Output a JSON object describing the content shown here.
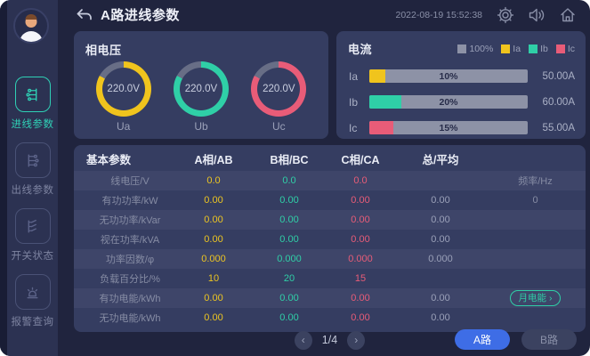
{
  "topbar": {
    "title": "A路进线参数",
    "timestamp": "2022-08-19 15:52:38",
    "icons": [
      "back-icon",
      "gear-icon",
      "speaker-icon",
      "home-icon"
    ]
  },
  "sidebar": {
    "items": [
      {
        "label": "进线参数",
        "icon": "incoming-line-icon",
        "active": true
      },
      {
        "label": "出线参数",
        "icon": "outgoing-line-icon",
        "active": false
      },
      {
        "label": "开关状态",
        "icon": "switch-status-icon",
        "active": false
      },
      {
        "label": "报警查询",
        "icon": "alarm-icon",
        "active": false
      }
    ]
  },
  "voltage_panel": {
    "title": "相电压",
    "gauges": [
      {
        "label": "Ua",
        "value": "220.0V",
        "color": "#f0c41d",
        "fill_percent": 83
      },
      {
        "label": "Ub",
        "value": "220.0V",
        "color": "#2fcfa7",
        "fill_percent": 83
      },
      {
        "label": "Uc",
        "value": "220.0V",
        "color": "#e85c78",
        "fill_percent": 83
      }
    ]
  },
  "current_panel": {
    "title": "电流",
    "legend": [
      {
        "label": "100%",
        "color": "#8d92a6"
      },
      {
        "label": "Ia",
        "color": "#f0c41d"
      },
      {
        "label": "Ib",
        "color": "#2fcfa7"
      },
      {
        "label": "Ic",
        "color": "#e85c78"
      }
    ],
    "bars": [
      {
        "label": "Ia",
        "percent": 10,
        "percent_label": "10%",
        "value": "50.00A",
        "color": "#f0c41d"
      },
      {
        "label": "Ib",
        "percent": 20,
        "percent_label": "20%",
        "value": "60.00A",
        "color": "#2fcfa7"
      },
      {
        "label": "Ic",
        "percent": 15,
        "percent_label": "15%",
        "value": "55.00A",
        "color": "#e85c78"
      }
    ]
  },
  "table": {
    "headers": [
      "基本参数",
      "A相/AB",
      "B相/BC",
      "C相/CA",
      "总/平均",
      ""
    ],
    "rows": [
      {
        "label": "线电压/V",
        "a": "0.0",
        "b": "0.0",
        "c": "0.0",
        "total": "",
        "extra": "频率/Hz"
      },
      {
        "label": "有功功率/kW",
        "a": "0.00",
        "b": "0.00",
        "c": "0.00",
        "total": "0.00",
        "extra": "0"
      },
      {
        "label": "无功功率/kVar",
        "a": "0.00",
        "b": "0.00",
        "c": "0.00",
        "total": "0.00",
        "extra": ""
      },
      {
        "label": "视在功率/kVA",
        "a": "0.00",
        "b": "0.00",
        "c": "0.00",
        "total": "0.00",
        "extra": ""
      },
      {
        "label": "功率因数/φ",
        "a": "0.000",
        "b": "0.000",
        "c": "0.000",
        "total": "0.000",
        "extra": ""
      },
      {
        "label": "负载百分比/%",
        "a": "10",
        "b": "20",
        "c": "15",
        "total": "",
        "extra": ""
      },
      {
        "label": "有功电能/kWh",
        "a": "0.00",
        "b": "0.00",
        "c": "0.00",
        "total": "0.00",
        "extra": "",
        "extra_button": "月电能"
      },
      {
        "label": "无功电能/kWh",
        "a": "0.00",
        "b": "0.00",
        "c": "0.00",
        "total": "0.00",
        "extra": ""
      }
    ]
  },
  "footer": {
    "page": "1/4",
    "prev_label": "‹",
    "next_label": "›",
    "buttons": [
      {
        "label": "A路",
        "active": true
      },
      {
        "label": "B路",
        "active": false
      }
    ]
  },
  "colors": {
    "accent_teal": "#2fd0b5",
    "accent_yellow": "#f0c41d",
    "accent_pink": "#e85c78",
    "accent_blue": "#3e6de6",
    "panel_bg": "#353d61",
    "page_bg": "#20243e"
  }
}
